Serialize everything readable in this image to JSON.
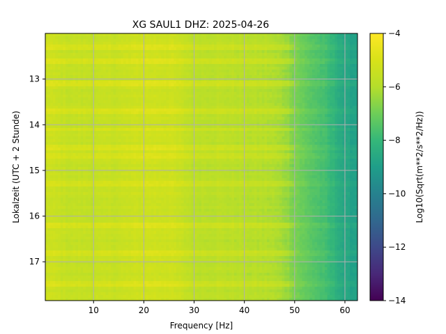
{
  "chart_data": {
    "type": "heatmap",
    "title": "XG SAUL1  DHZ: 2025-04-26",
    "xlabel": "Frequency [Hz]",
    "ylabel": "Lokalzeit (UTC + 2 Stunde)",
    "xlim": [
      0.4,
      62.5
    ],
    "ylim": [
      17.85,
      12.0
    ],
    "y_inverted": true,
    "xticks": [
      10,
      20,
      30,
      40,
      50,
      60
    ],
    "yticks": [
      13,
      14,
      15,
      16,
      17
    ],
    "grid": true,
    "colormap": "viridis",
    "colorbar": {
      "label": "Log10(Sqrt(m**2/s**2/Hz))",
      "range": [
        -14,
        -4
      ],
      "ticks": [
        -14,
        -12,
        -10,
        -8,
        -6,
        -4
      ]
    },
    "frequency_profile": {
      "freq_hz": [
        0,
        5,
        10,
        15,
        20,
        25,
        30,
        35,
        40,
        45,
        48,
        50,
        52,
        55,
        58,
        60,
        62.5
      ],
      "level": [
        -5.3,
        -5.6,
        -5.6,
        -5.5,
        -5.3,
        -5.3,
        -5.8,
        -5.8,
        -5.9,
        -6.0,
        -6.3,
        -6.8,
        -7.2,
        -7.6,
        -8.2,
        -8.7,
        -8.9
      ]
    },
    "elevated_bands_hour": [
      12.3,
      12.6,
      13.1,
      13.7,
      14.1,
      14.5,
      14.7,
      15.3,
      16.2,
      16.8,
      17.5
    ]
  }
}
